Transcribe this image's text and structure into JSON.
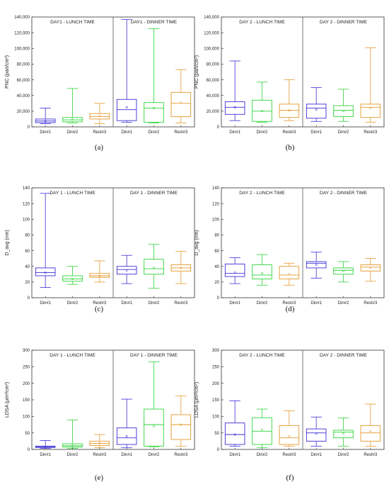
{
  "colors": {
    "din1": "#3a2fd6",
    "din2": "#2fd43a",
    "rest3": "#e3992e",
    "axis": "#333333",
    "divider": "#555555"
  },
  "panels": [
    {
      "label": "(a)",
      "left_title": "DAY1 - LUNCH TIME",
      "right_title": "DAY1 - DINNER TIME"
    },
    {
      "label": "(b)",
      "left_title": "DAY 2 - LUNCH TIME",
      "right_title": "DAY 2 - DINNER TIME"
    },
    {
      "label": "(c)",
      "left_title": "DAY 1 - LUNCH TIME",
      "right_title": "DAY 1 - DINNER TIME"
    },
    {
      "label": "(d)",
      "left_title": "DAY 2 - LUNCH TIME",
      "right_title": "DAY 2 - DINNER TIME"
    },
    {
      "label": "(e)",
      "left_title": "DAY 1 - LUNCH TIME",
      "right_title": "DAY 1 - DINNER TIME"
    },
    {
      "label": "(f)",
      "left_title": "DAY 2 - LUNCH TIME",
      "right_title": "DAY 2 - DINNER TIME"
    }
  ],
  "chart_data": [
    {
      "type": "box",
      "ylabel": "PNC (part/cm³)",
      "ylim": [
        0,
        140000
      ],
      "yticks": [
        "0",
        "20,000",
        "40,000",
        "60,000",
        "80,000",
        "100,000",
        "120,000",
        "140,000"
      ],
      "categories": [
        "Din#1",
        "Din#2",
        "Rest#3",
        "Din#1",
        "Din#2",
        "Rest#3"
      ],
      "series": [
        {
          "min": 4000,
          "q1": 5500,
          "median": 7500,
          "q3": 10000,
          "max": 24000,
          "mean": 7500
        },
        {
          "min": 5000,
          "q1": 6500,
          "median": 9000,
          "q3": 12000,
          "max": 49000,
          "mean": 9500
        },
        {
          "min": 4000,
          "q1": 10000,
          "median": 13000,
          "q3": 17000,
          "max": 30000,
          "mean": 14000
        },
        {
          "min": 6000,
          "q1": 8000,
          "median": 22000,
          "q3": 35000,
          "max": 137000,
          "mean": 25000
        },
        {
          "min": 5000,
          "q1": 6000,
          "median": 24000,
          "q3": 31000,
          "max": 125000,
          "mean": 24000
        },
        {
          "min": 5000,
          "q1": 13000,
          "median": 30000,
          "q3": 44000,
          "max": 73000,
          "mean": 31000
        }
      ]
    },
    {
      "type": "box",
      "ylabel": "PNC (part/cm³)",
      "ylim": [
        0,
        140000
      ],
      "yticks": [
        "0",
        "20,000",
        "40,000",
        "60,000",
        "80,000",
        "100,000",
        "120,000",
        "140,000"
      ],
      "categories": [
        "Din#1",
        "Din#2",
        "Rest#3",
        "Din#1",
        "Din#2",
        "Rest#3"
      ],
      "series": [
        {
          "min": 8000,
          "q1": 16000,
          "median": 25000,
          "q3": 32000,
          "max": 84000,
          "mean": 25000
        },
        {
          "min": 6000,
          "q1": 7000,
          "median": 20000,
          "q3": 34000,
          "max": 57000,
          "mean": 20000
        },
        {
          "min": 8000,
          "q1": 12000,
          "median": 21000,
          "q3": 29000,
          "max": 60000,
          "mean": 21000
        },
        {
          "min": 7000,
          "q1": 11000,
          "median": 24000,
          "q3": 29000,
          "max": 50000,
          "mean": 22000
        },
        {
          "min": 7000,
          "q1": 13000,
          "median": 21000,
          "q3": 27000,
          "max": 48000,
          "mean": 20000
        },
        {
          "min": 6000,
          "q1": 12000,
          "median": 25000,
          "q3": 29000,
          "max": 101000,
          "mean": 24000
        }
      ]
    },
    {
      "type": "box",
      "ylabel": "D_avg (nm)",
      "ylim": [
        0,
        140
      ],
      "yticks": [
        "0",
        "20",
        "40",
        "60",
        "80",
        "100",
        "120",
        "140"
      ],
      "categories": [
        "Din#1",
        "Din#2",
        "Rest#3",
        "Din#1",
        "Din#2",
        "Rest#3"
      ],
      "series": [
        {
          "min": 13,
          "q1": 28,
          "median": 32,
          "q3": 38,
          "max": 133,
          "mean": 32
        },
        {
          "min": 17,
          "q1": 21,
          "median": 24,
          "q3": 28,
          "max": 40,
          "mean": 24
        },
        {
          "min": 20,
          "q1": 26,
          "median": 28,
          "q3": 31,
          "max": 47,
          "mean": 28
        },
        {
          "min": 18,
          "q1": 30,
          "median": 36,
          "q3": 40,
          "max": 54,
          "mean": 35
        },
        {
          "min": 12,
          "q1": 30,
          "median": 37,
          "q3": 49,
          "max": 68,
          "mean": 38
        },
        {
          "min": 18,
          "q1": 34,
          "median": 38,
          "q3": 42,
          "max": 59,
          "mean": 38
        }
      ]
    },
    {
      "type": "box",
      "ylabel": "D_avg (nm)",
      "ylim": [
        0,
        140
      ],
      "yticks": [
        "0",
        "20",
        "40",
        "60",
        "80",
        "100",
        "120",
        "140"
      ],
      "categories": [
        "Din#1",
        "Din#2",
        "Rest#3",
        "Din#1",
        "Din#2",
        "Rest#3"
      ],
      "series": [
        {
          "min": 18,
          "q1": 27,
          "median": 31,
          "q3": 43,
          "max": 51,
          "mean": 32
        },
        {
          "min": 16,
          "q1": 24,
          "median": 29,
          "q3": 42,
          "max": 55,
          "mean": 31
        },
        {
          "min": 16,
          "q1": 24,
          "median": 29,
          "q3": 40,
          "max": 44,
          "mean": 30
        },
        {
          "min": 25,
          "q1": 38,
          "median": 44,
          "q3": 46,
          "max": 58,
          "mean": 42
        },
        {
          "min": 20,
          "q1": 30,
          "median": 35,
          "q3": 38,
          "max": 46,
          "mean": 34
        },
        {
          "min": 21,
          "q1": 34,
          "median": 39,
          "q3": 42,
          "max": 50,
          "mean": 38
        }
      ]
    },
    {
      "type": "box",
      "ylabel": "LDSA (μm²/cm³)",
      "ylim": [
        0,
        300
      ],
      "yticks": [
        "0",
        "50",
        "100",
        "150",
        "200",
        "250",
        "300"
      ],
      "categories": [
        "Din#1",
        "Din#2",
        "Rest#3",
        "Din#1",
        "Din#2",
        "Rest#3"
      ],
      "series": [
        {
          "min": 3,
          "q1": 6,
          "median": 8,
          "q3": 10,
          "max": 27,
          "mean": 8
        },
        {
          "min": 3,
          "q1": 7,
          "median": 11,
          "q3": 17,
          "max": 89,
          "mean": 12
        },
        {
          "min": 5,
          "q1": 12,
          "median": 18,
          "q3": 25,
          "max": 45,
          "mean": 18
        },
        {
          "min": 5,
          "q1": 15,
          "median": 35,
          "q3": 65,
          "max": 152,
          "mean": 40
        },
        {
          "min": 8,
          "q1": 10,
          "median": 75,
          "q3": 122,
          "max": 265,
          "mean": 70
        },
        {
          "min": 10,
          "q1": 30,
          "median": 75,
          "q3": 105,
          "max": 162,
          "mean": 75
        }
      ]
    },
    {
      "type": "box",
      "ylabel": "LDSA (μm²/cm³)",
      "ylim": [
        0,
        300
      ],
      "yticks": [
        "0",
        "50",
        "100",
        "150",
        "200",
        "250",
        "300"
      ],
      "categories": [
        "Din#1",
        "Din#2",
        "Rest#3",
        "Din#1",
        "Din#2",
        "Rest#3"
      ],
      "series": [
        {
          "min": 10,
          "q1": 15,
          "median": 45,
          "q3": 80,
          "max": 147,
          "mean": 45
        },
        {
          "min": 5,
          "q1": 15,
          "median": 55,
          "q3": 96,
          "max": 122,
          "mean": 60
        },
        {
          "min": 10,
          "q1": 15,
          "median": 35,
          "q3": 72,
          "max": 117,
          "mean": 40
        },
        {
          "min": 10,
          "q1": 25,
          "median": 50,
          "q3": 62,
          "max": 98,
          "mean": 48
        },
        {
          "min": 10,
          "q1": 35,
          "median": 52,
          "q3": 58,
          "max": 95,
          "mean": 48
        },
        {
          "min": 10,
          "q1": 25,
          "median": 50,
          "q3": 72,
          "max": 137,
          "mean": 55
        }
      ]
    }
  ]
}
